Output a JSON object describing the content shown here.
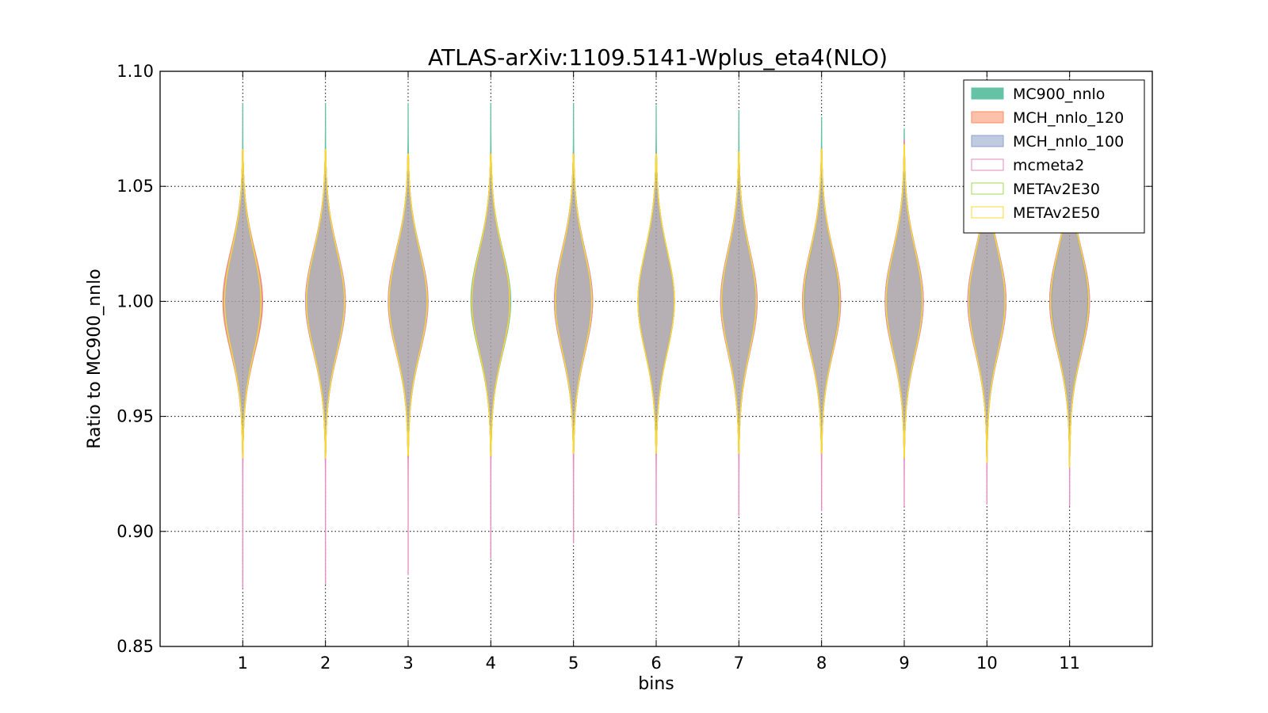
{
  "chart_data": {
    "type": "violin",
    "title": "ATLAS-arXiv:1109.5141-Wplus_eta4(NLO)",
    "xlabel": "bins",
    "ylabel": "Ratio to MC900_nnlo",
    "ylim": [
      0.85,
      1.1
    ],
    "xlim": [
      0,
      12
    ],
    "yticks": [
      "0.85",
      "0.90",
      "0.95",
      "1.00",
      "1.05",
      "1.10"
    ],
    "categories": [
      "1",
      "2",
      "3",
      "4",
      "5",
      "6",
      "7",
      "8",
      "9",
      "10",
      "11"
    ],
    "grid": true,
    "legend_position": "top-right",
    "series": [
      {
        "name": "MC900_nnlo",
        "fill": "#66c2a5",
        "edge": "#66c2a5",
        "filled": true,
        "min": [
          0.93,
          0.93,
          0.932,
          0.932,
          0.934,
          0.934,
          0.934,
          0.934,
          0.932,
          0.93,
          0.928
        ],
        "max": [
          1.086,
          1.086,
          1.086,
          1.086,
          1.086,
          1.085,
          1.083,
          1.08,
          1.075,
          1.062,
          1.06
        ],
        "halfwidth": [
          0.22,
          0.23,
          0.24,
          0.24,
          0.23,
          0.22,
          0.21,
          0.21,
          0.22,
          0.22,
          0.22
        ]
      },
      {
        "name": "MCH_nnlo_120",
        "fill": "#fc8d62",
        "edge": "#fc8d62",
        "filled": true,
        "min": [
          0.934,
          0.934,
          0.935,
          0.935,
          0.936,
          0.936,
          0.936,
          0.936,
          0.934,
          0.932,
          0.93
        ],
        "max": [
          1.066,
          1.066,
          1.064,
          1.064,
          1.064,
          1.064,
          1.065,
          1.066,
          1.07,
          1.06,
          1.062
        ],
        "halfwidth": [
          0.24,
          0.24,
          0.23,
          0.23,
          0.23,
          0.22,
          0.22,
          0.23,
          0.23,
          0.23,
          0.24
        ]
      },
      {
        "name": "MCH_nnlo_100",
        "fill": "#8da0cb",
        "edge": "#8da0cb",
        "filled": true,
        "min": [
          0.934,
          0.934,
          0.934,
          0.934,
          0.936,
          0.936,
          0.936,
          0.936,
          0.934,
          0.932,
          0.93
        ],
        "max": [
          1.064,
          1.064,
          1.064,
          1.064,
          1.064,
          1.064,
          1.065,
          1.066,
          1.068,
          1.06,
          1.06
        ],
        "halfwidth": [
          0.23,
          0.24,
          0.23,
          0.23,
          0.23,
          0.22,
          0.22,
          0.22,
          0.23,
          0.23,
          0.24
        ]
      },
      {
        "name": "mcmeta2",
        "fill": "#e78ac3",
        "edge": "#e78ac3",
        "filled": false,
        "min": [
          0.875,
          0.877,
          0.881,
          0.888,
          0.895,
          0.903,
          0.907,
          0.909,
          0.911,
          0.912,
          0.911
        ],
        "max": [
          1.066,
          1.066,
          1.064,
          1.064,
          1.064,
          1.064,
          1.065,
          1.066,
          1.07,
          1.062,
          1.076
        ],
        "halfwidth": [
          0.23,
          0.24,
          0.24,
          0.23,
          0.23,
          0.22,
          0.22,
          0.23,
          0.23,
          0.23,
          0.24
        ]
      },
      {
        "name": "METAv2E30",
        "fill": "#a6d854",
        "edge": "#a6d854",
        "filled": false,
        "min": [
          0.932,
          0.932,
          0.933,
          0.933,
          0.934,
          0.934,
          0.934,
          0.934,
          0.932,
          0.93,
          0.928
        ],
        "max": [
          1.066,
          1.066,
          1.064,
          1.064,
          1.064,
          1.064,
          1.065,
          1.066,
          1.068,
          1.06,
          1.062
        ],
        "halfwidth": [
          0.22,
          0.23,
          0.23,
          0.23,
          0.22,
          0.22,
          0.21,
          0.22,
          0.22,
          0.22,
          0.23
        ]
      },
      {
        "name": "METAv2E50",
        "fill": "#ffd92f",
        "edge": "#ffd92f",
        "filled": false,
        "min": [
          0.932,
          0.932,
          0.933,
          0.933,
          0.934,
          0.934,
          0.934,
          0.934,
          0.932,
          0.93,
          0.928
        ],
        "max": [
          1.066,
          1.066,
          1.064,
          1.064,
          1.064,
          1.064,
          1.065,
          1.066,
          1.068,
          1.06,
          1.062
        ],
        "halfwidth": [
          0.22,
          0.23,
          0.23,
          0.23,
          0.22,
          0.22,
          0.21,
          0.22,
          0.22,
          0.22,
          0.23
        ]
      }
    ],
    "center": 1.0,
    "spread": 0.022
  }
}
